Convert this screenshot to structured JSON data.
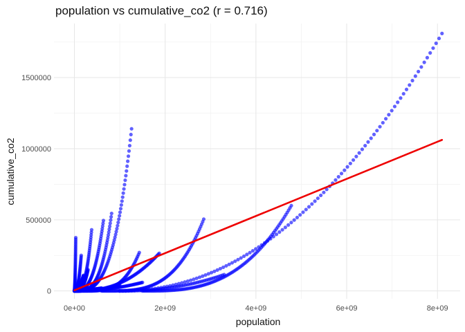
{
  "chart_data": {
    "type": "scatter",
    "title": "population vs cumulative_co2 (r = 0.716)",
    "xlabel": "population",
    "ylabel": "cumulative_co2",
    "xlim": [
      -450000000,
      8500000000
    ],
    "ylim": [
      -60000000,
      1880000000
    ],
    "xlim_note": "x axis in persons",
    "x_ticks": [
      {
        "value": 0,
        "label": "0e+00"
      },
      {
        "value": 2000000000,
        "label": "2e+09"
      },
      {
        "value": 4000000000,
        "label": "4e+09"
      },
      {
        "value": 6000000000,
        "label": "6e+09"
      },
      {
        "value": 8000000000,
        "label": "8e+09"
      }
    ],
    "y_ticks": [
      {
        "value": 0,
        "label": "0"
      },
      {
        "value": 500000,
        "label": "500000"
      },
      {
        "value": 1000000,
        "label": "1000000"
      },
      {
        "value": 1500000,
        "label": "1500000"
      }
    ],
    "x_minor": [
      1000000000,
      3000000000,
      5000000000,
      7000000000
    ],
    "y_minor": [
      250000,
      750000,
      1250000,
      1750000
    ],
    "y_range": [
      -55000,
      1880000
    ],
    "grid": true,
    "point_color": "#0000ff",
    "line_color": "#ee0000",
    "trend_line": {
      "x": [
        0,
        8100000000
      ],
      "y": [
        5000,
        1062000
      ]
    },
    "series": [
      {
        "x_range": [
          8000000,
          1260000000
        ],
        "y_end": 1140000,
        "curve": 3.2,
        "n": 90
      },
      {
        "x_range": [
          5000000,
          820000000
        ],
        "y_end": 545000,
        "curve": 3.5,
        "n": 80
      },
      {
        "x_range": [
          5000000,
          640000000
        ],
        "y_end": 495000,
        "curve": 3.0,
        "n": 75
      },
      {
        "x_range": [
          5000000,
          380000000
        ],
        "y_end": 430000,
        "curve": 3.0,
        "n": 70
      },
      {
        "x_range": [
          0,
          30000000
        ],
        "y_end": 375000,
        "curve": 2.0,
        "n": 60
      },
      {
        "x_range": [
          50000000,
          1870000000
        ],
        "y_end": 265000,
        "curve": 2.4,
        "n": 90
      },
      {
        "x_range": [
          200000000,
          1430000000
        ],
        "y_end": 270000,
        "curve": 3.5,
        "n": 70
      },
      {
        "x_range": [
          600000000,
          2850000000
        ],
        "y_end": 505000,
        "curve": 3.6,
        "n": 100
      },
      {
        "x_range": [
          1000000000,
          3300000000
        ],
        "y_end": 115000,
        "curve": 2.2,
        "n": 60
      },
      {
        "x_range": [
          1500000000,
          4780000000
        ],
        "y_end": 600000,
        "curve": 3.0,
        "n": 110
      },
      {
        "x_range": [
          1000000000,
          8100000000
        ],
        "y_end": 1810000,
        "curve": 2.1,
        "n": 110
      },
      {
        "x_range": [
          0,
          300000000
        ],
        "y_end": 150000,
        "curve": 3.0,
        "n": 70
      },
      {
        "x_range": [
          0,
          150000000
        ],
        "y_end": 250000,
        "curve": 2.5,
        "n": 60
      },
      {
        "x_range": [
          0,
          200000000
        ],
        "y_end": 110000,
        "curve": 2.0,
        "n": 60
      },
      {
        "x_range": [
          0,
          1500000000
        ],
        "y_end": 60000,
        "curve": 2.0,
        "n": 80
      },
      {
        "x_range": [
          0,
          1000000000
        ],
        "y_end": 40000,
        "curve": 2.0,
        "n": 80
      },
      {
        "x_range": [
          0,
          600000000
        ],
        "y_end": 20000,
        "curve": 1.5,
        "n": 80
      }
    ]
  }
}
